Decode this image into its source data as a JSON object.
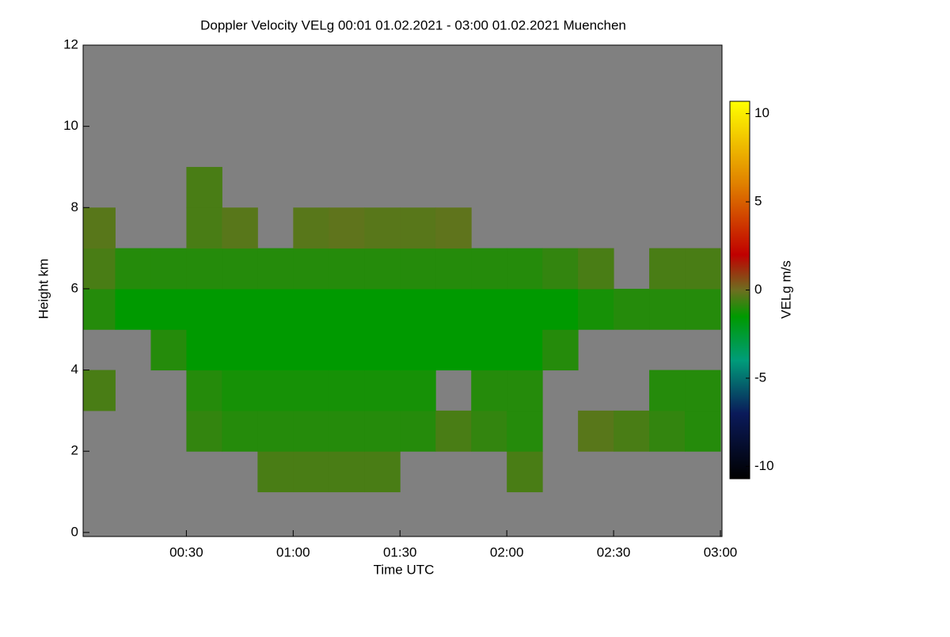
{
  "chart_data": {
    "type": "heatmap",
    "title": "Doppler Velocity VELg   00:01 01.02.2021 - 03:00 01.02.2021 Muenchen",
    "xlabel": "Time UTC",
    "ylabel": "Height km",
    "colorbar_label": "VELg m/s",
    "background": "#808080",
    "xlim": [
      1,
      180
    ],
    "xticks": [
      {
        "value": 30,
        "label": "00:30"
      },
      {
        "value": 60,
        "label": "01:00"
      },
      {
        "value": 90,
        "label": "01:30"
      },
      {
        "value": 120,
        "label": "02:00"
      },
      {
        "value": 150,
        "label": "02:30"
      },
      {
        "value": 180,
        "label": "03:00"
      }
    ],
    "ylim": [
      -0.1,
      12
    ],
    "yticks": [
      0,
      2,
      4,
      6,
      8,
      10,
      12
    ],
    "x_edges": [
      1,
      10,
      20,
      30,
      40,
      50,
      60,
      70,
      80,
      90,
      100,
      110,
      120,
      130,
      140,
      150,
      160,
      170,
      180
    ],
    "y_edges": [
      0,
      1,
      2,
      3,
      4,
      5,
      6,
      7,
      8,
      9,
      10,
      11,
      12
    ],
    "z": [
      [
        null,
        null,
        null,
        null,
        null,
        null,
        null,
        null,
        null,
        null,
        null,
        null,
        null,
        null,
        null,
        null,
        null,
        null
      ],
      [
        null,
        null,
        null,
        null,
        null,
        -0.5,
        -0.5,
        -0.5,
        -0.5,
        null,
        null,
        null,
        -0.5,
        null,
        null,
        null,
        null,
        null
      ],
      [
        null,
        null,
        null,
        -0.8,
        -1,
        -1,
        -1,
        -1,
        -1,
        -1,
        -0.5,
        -0.8,
        -1,
        null,
        -0.3,
        -0.5,
        -0.8,
        -1
      ],
      [
        -0.5,
        null,
        null,
        -1,
        -1.2,
        -1.2,
        -1.2,
        -1.2,
        -1.2,
        -1.2,
        null,
        -1,
        -1,
        null,
        null,
        null,
        -1,
        -1
      ],
      [
        null,
        null,
        -1,
        -1.5,
        -1.5,
        -1.5,
        -1.5,
        -1.5,
        -1.5,
        -1.5,
        -1.5,
        -1.5,
        -1.5,
        -1,
        null,
        null,
        null,
        null
      ],
      [
        -1,
        -1.5,
        -1.5,
        -1.5,
        -1.5,
        -1.5,
        -1.5,
        -1.5,
        -1.5,
        -1.5,
        -1.5,
        -1.5,
        -1.5,
        -1.5,
        -1.2,
        -1,
        -1,
        -1
      ],
      [
        -0.5,
        -1,
        -1,
        -1,
        -1,
        -1,
        -1,
        -1,
        -1,
        -1,
        -1,
        -1,
        -1,
        -0.8,
        -0.5,
        null,
        -0.5,
        -0.5
      ],
      [
        -0.3,
        null,
        null,
        -0.5,
        -0.3,
        null,
        -0.3,
        -0.2,
        -0.3,
        -0.3,
        -0.2,
        null,
        null,
        null,
        null,
        null,
        null,
        null
      ],
      [
        null,
        null,
        null,
        -0.5,
        null,
        null,
        null,
        null,
        null,
        null,
        null,
        null,
        null,
        null,
        null,
        null,
        null,
        null
      ],
      [
        null,
        null,
        null,
        null,
        null,
        null,
        null,
        null,
        null,
        null,
        null,
        null,
        null,
        null,
        null,
        null,
        null,
        null
      ],
      [
        null,
        null,
        null,
        null,
        null,
        null,
        null,
        null,
        null,
        null,
        null,
        null,
        null,
        null,
        null,
        null,
        null,
        null
      ],
      [
        null,
        null,
        null,
        null,
        null,
        null,
        null,
        null,
        null,
        null,
        null,
        null,
        null,
        null,
        null,
        null,
        null,
        null
      ]
    ],
    "clim": [
      -10.7,
      10.7
    ],
    "cticks": [
      10,
      5,
      0,
      -5,
      -10
    ],
    "colorscale": [
      [
        -10.7,
        "#000000"
      ],
      [
        -7,
        "#0a1a5a"
      ],
      [
        -4,
        "#009c7a"
      ],
      [
        -1.5,
        "#009a00"
      ],
      [
        0,
        "#6e6e20"
      ],
      [
        2,
        "#c00000"
      ],
      [
        6,
        "#e08000"
      ],
      [
        10.7,
        "#ffff00"
      ]
    ]
  }
}
